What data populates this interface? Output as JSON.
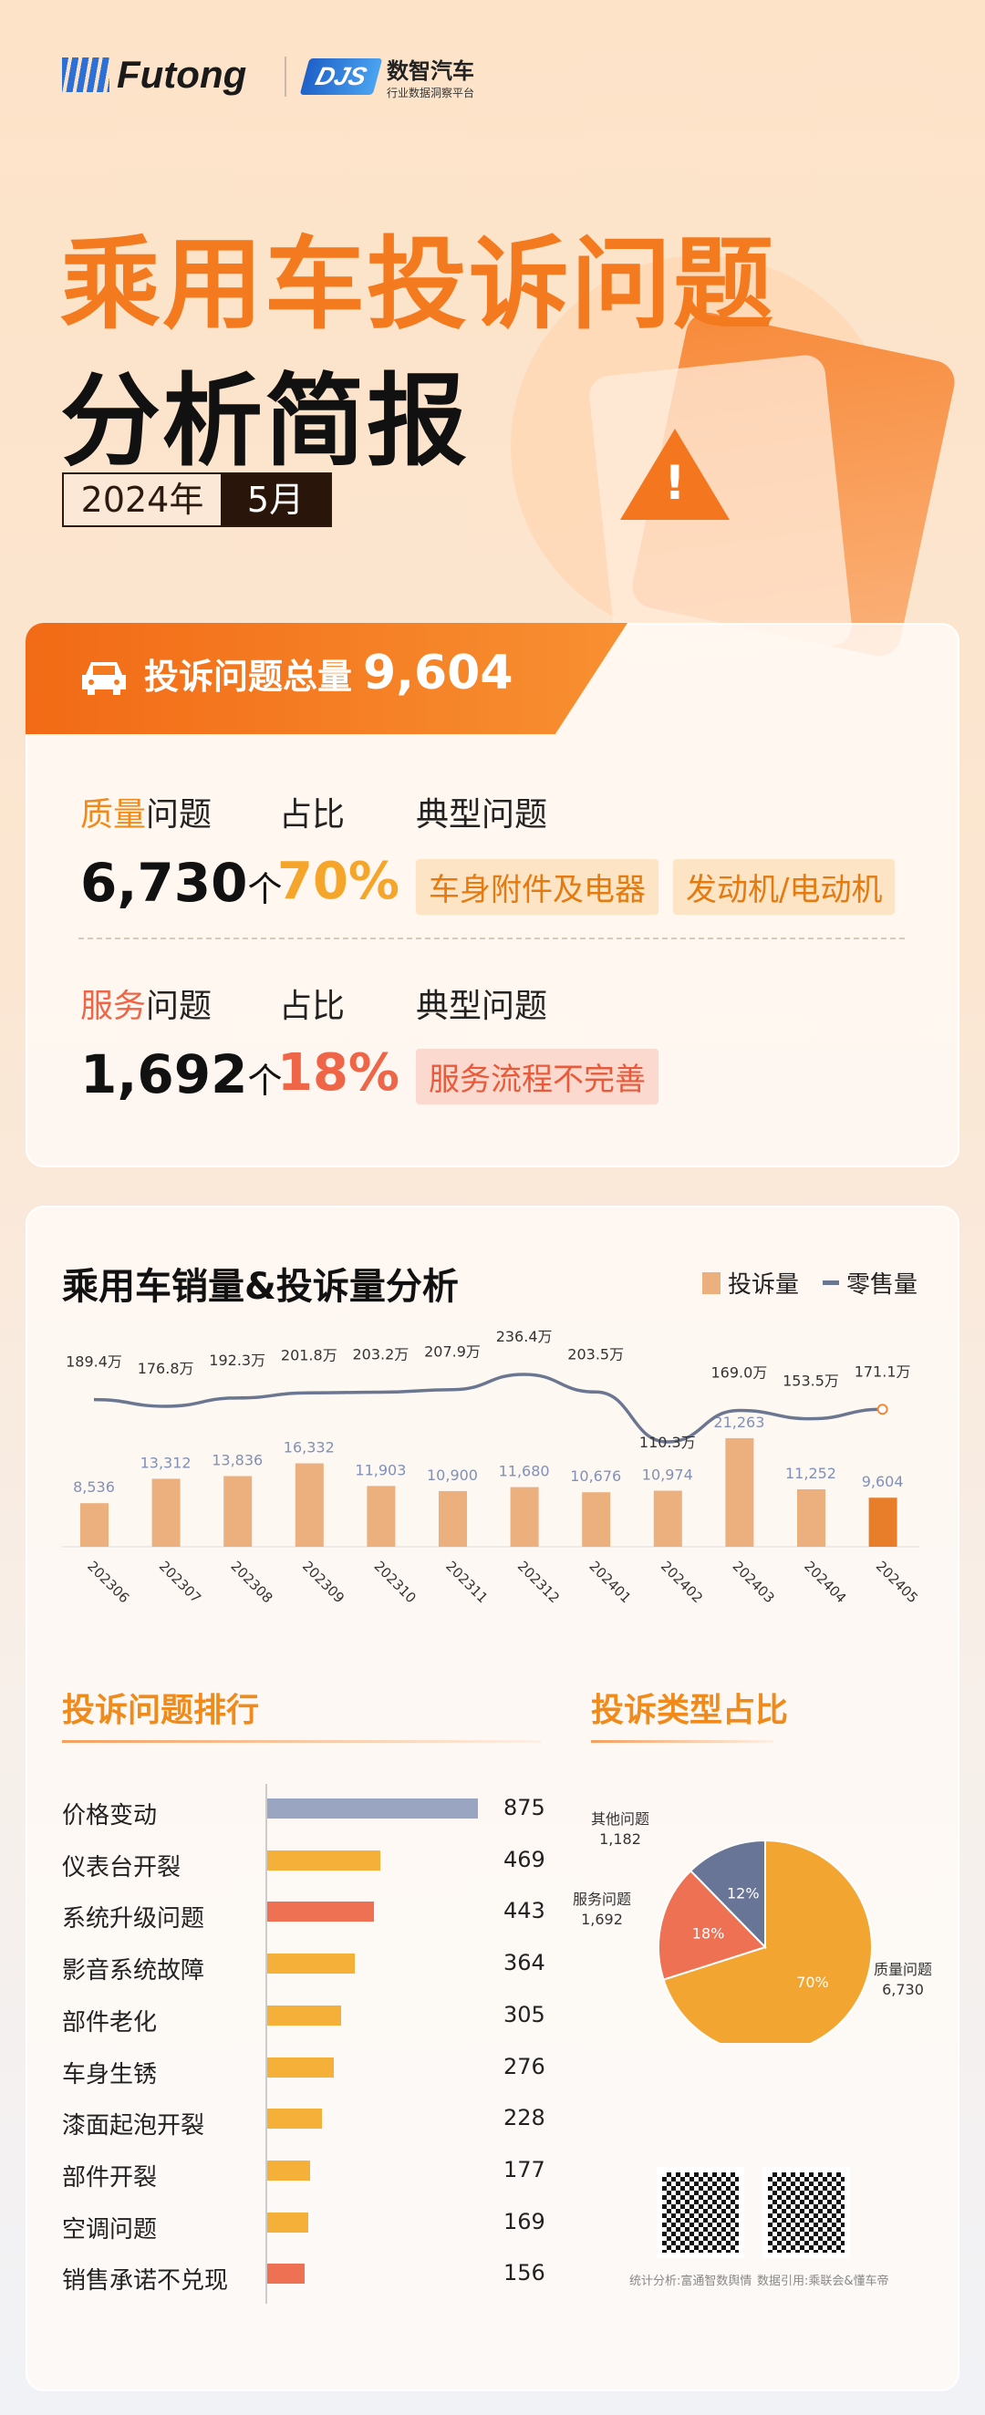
{
  "header": {
    "brand": "Futong",
    "brand2_mark": "DJS",
    "brand2_name": "数智汽车",
    "brand2_sub": "行业数据洞察平台",
    "title_line1": "乘用车投诉问题",
    "title_line2": "分析简报",
    "year": "2024年",
    "month": "5月"
  },
  "summary": {
    "total_label": "投诉问题总量",
    "total_value": "9,604",
    "quality": {
      "label_hl": "质量",
      "label_rest": "问题",
      "share_label": "占比",
      "typical_label": "典型问题",
      "count": "6,730",
      "unit": "个",
      "share": "70%",
      "tags": [
        "车身附件及电器",
        "发动机/电动机"
      ]
    },
    "service": {
      "label_hl": "服务",
      "label_rest": "问题",
      "share_label": "占比",
      "typical_label": "典型问题",
      "count": "1,692",
      "unit": "个",
      "share": "18%",
      "tags": [
        "服务流程不完善"
      ]
    }
  },
  "colors": {
    "accent": "#f47a20",
    "bar": "#ecb07e",
    "bar_highlight": "#e87d2a",
    "line": "#6b7691",
    "pie_quality": "#f2a531",
    "pie_service": "#ef7154",
    "pie_other": "#687596"
  },
  "chart_data": [
    {
      "type": "bar+line",
      "title": "乘用车销量&投诉量分析",
      "categories": [
        "202306",
        "202307",
        "202308",
        "202309",
        "202310",
        "202311",
        "202312",
        "202401",
        "202402",
        "202403",
        "202404",
        "202405"
      ],
      "series": [
        {
          "name": "投诉量",
          "type": "bar",
          "values": [
            8536,
            13312,
            13836,
            16332,
            11903,
            10900,
            11680,
            10676,
            10974,
            21263,
            11252,
            9604
          ],
          "labels": [
            "8,536",
            "13,312",
            "13,836",
            "16,332",
            "11,903",
            "10,900",
            "11,680",
            "10,676",
            "10,974",
            "21,263",
            "11,252",
            "9,604"
          ]
        },
        {
          "name": "零售量",
          "type": "line",
          "values": [
            189.4,
            176.8,
            192.3,
            201.8,
            203.2,
            207.9,
            236.4,
            203.5,
            110.3,
            169.0,
            153.5,
            171.1
          ],
          "labels": [
            "189.4万",
            "176.8万",
            "192.3万",
            "201.8万",
            "203.2万",
            "207.9万",
            "236.4万",
            "203.5万",
            "110.3万",
            "169.0万",
            "153.5万",
            "171.1万"
          ]
        }
      ],
      "legend": "top-right",
      "grid": false
    },
    {
      "type": "bar",
      "orientation": "horizontal",
      "title": "投诉问题排行",
      "categories": [
        "价格变动",
        "仪表台开裂",
        "系统升级问题",
        "影音系统故障",
        "部件老化",
        "车身生锈",
        "漆面起泡开裂",
        "部件开裂",
        "空调问题",
        "销售承诺不兑现"
      ],
      "values": [
        875,
        469,
        443,
        364,
        305,
        276,
        228,
        177,
        169,
        156
      ],
      "colors": [
        "#9aa5c2",
        "#f5b03a",
        "#ef7154",
        "#f5b03a",
        "#f5b03a",
        "#f5b03a",
        "#f5b03a",
        "#f5b03a",
        "#f5b03a",
        "#ef7154"
      ]
    },
    {
      "type": "pie",
      "title": "投诉类型占比",
      "slices": [
        {
          "name": "质量问题",
          "value": 6730,
          "pct": "70%",
          "label": "6,730"
        },
        {
          "name": "服务问题",
          "value": 1692,
          "pct": "18%",
          "label": "1,692"
        },
        {
          "name": "其他问题",
          "value": 1182,
          "pct": "12%",
          "label": "1,182"
        }
      ]
    }
  ],
  "footer": {
    "caption1": "统计分析:富通智数舆情",
    "caption2": "数据引用:乘联会&懂车帝"
  }
}
